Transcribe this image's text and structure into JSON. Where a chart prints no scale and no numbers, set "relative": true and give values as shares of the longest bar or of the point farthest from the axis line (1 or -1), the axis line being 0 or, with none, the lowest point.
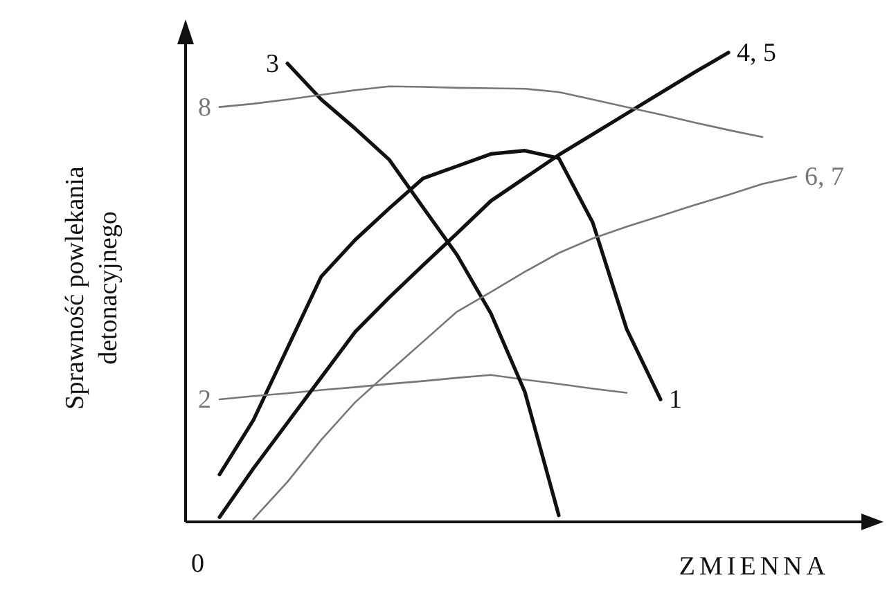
{
  "chart_data": {
    "type": "line",
    "relative": true,
    "xlabel": "ZMIENNA",
    "ylabel": "Sprawność powlekania detonacyjnego",
    "annotations": [
      "0"
    ],
    "grid": false,
    "marker": "none",
    "line_style": "solid",
    "categories": [
      null,
      null,
      null,
      null,
      null,
      null,
      null,
      null,
      null,
      null,
      null,
      null,
      null,
      null,
      null,
      null,
      null,
      null,
      null
    ],
    "series": [
      {
        "name": "1",
        "color": "#111111",
        "values": [
          null,
          0.101,
          0.217,
          0.37,
          0.523,
          0.601,
          0.668,
          0.732,
          0.758,
          0.784,
          0.791,
          0.775,
          0.638,
          0.411,
          0.261,
          null,
          null,
          null,
          null
        ]
      },
      {
        "name": "2",
        "color": "#777777",
        "values": [
          null,
          0.261,
          0.268,
          0.274,
          0.281,
          0.287,
          0.294,
          0.3,
          0.307,
          0.313,
          0.303,
          0.294,
          0.284,
          0.275,
          null,
          null,
          null,
          null,
          null
        ]
      },
      {
        "name": "3",
        "color": "#111111",
        "values": [
          null,
          null,
          null,
          0.977,
          0.9,
          0.838,
          0.772,
          0.67,
          0.569,
          0.444,
          0.277,
          0.014,
          null,
          null,
          null,
          null,
          null,
          null,
          null
        ]
      },
      {
        "name": "4, 5",
        "color": "#111111",
        "values": [
          null,
          0.01,
          0.114,
          0.211,
          0.308,
          0.405,
          0.478,
          0.547,
          0.615,
          0.684,
          0.733,
          0.782,
          0.826,
          0.87,
          0.914,
          0.958,
          1,
          null,
          null
        ]
      },
      {
        "name": "6, 7",
        "color": "#777777",
        "values": [
          null,
          null,
          0.006,
          0.085,
          0.175,
          0.255,
          0.32,
          0.384,
          0.448,
          0.49,
          0.533,
          0.573,
          0.604,
          0.629,
          0.652,
          0.675,
          0.697,
          0.72,
          0.736
        ]
      },
      {
        "name": "8",
        "color": "#777777",
        "values": [
          null,
          0.884,
          0.891,
          0.9,
          0.91,
          0.92,
          0.928,
          0.927,
          0.925,
          0.924,
          0.923,
          0.916,
          0.9,
          0.884,
          0.868,
          0.851,
          0.835,
          0.82,
          null
        ]
      }
    ]
  }
}
